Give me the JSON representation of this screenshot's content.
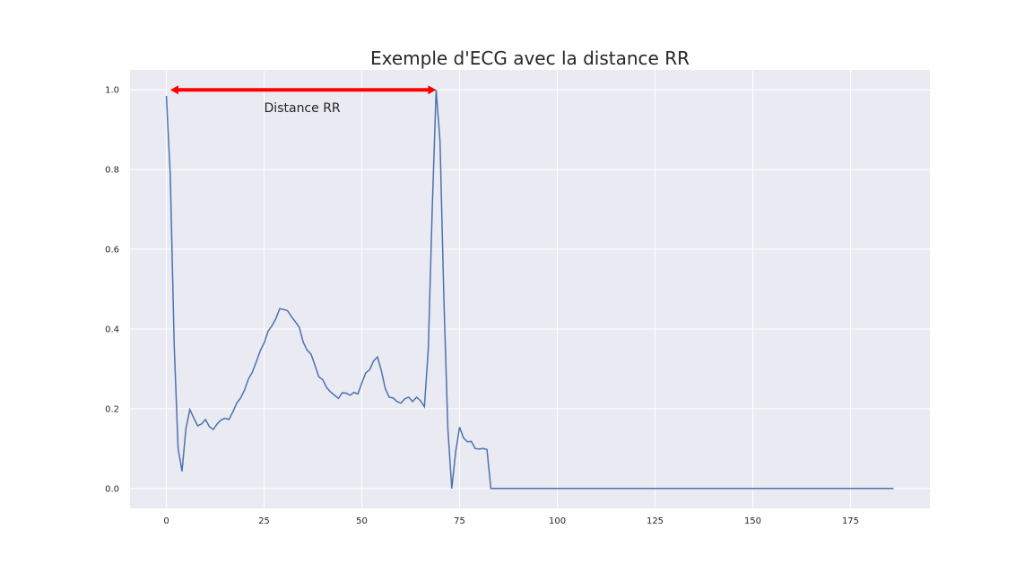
{
  "chart_data": {
    "type": "line",
    "title": "Exemple d'ECG avec la distance RR",
    "xlabel": "",
    "ylabel": "",
    "xlim": [
      -9.3,
      195.3
    ],
    "ylim": [
      -0.05,
      1.05
    ],
    "xticks": [
      0,
      25,
      50,
      75,
      100,
      125,
      150,
      175
    ],
    "yticks": [
      0.0,
      0.2,
      0.4,
      0.6,
      0.8,
      1.0
    ],
    "xtick_labels": [
      "0",
      "25",
      "50",
      "75",
      "100",
      "125",
      "150",
      "175"
    ],
    "ytick_labels": [
      "0.0",
      "0.2",
      "0.4",
      "0.6",
      "0.8",
      "1.0"
    ],
    "grid": true,
    "style": {
      "background": "#eaeaf2",
      "grid_color": "#ffffff",
      "line_color": "#4c72b0",
      "annotation_color": "#ff0000"
    },
    "series": [
      {
        "x": [
          0,
          1,
          2,
          3,
          4,
          5,
          6,
          7,
          8,
          9,
          10,
          11,
          12,
          13,
          14,
          15,
          16,
          17,
          18,
          19,
          20,
          21,
          22,
          23,
          24,
          25,
          26,
          27,
          28,
          29,
          30,
          31,
          32,
          33,
          34,
          35,
          36,
          37,
          38,
          39,
          40,
          41,
          42,
          43,
          44,
          45,
          46,
          47,
          48,
          49,
          50,
          51,
          52,
          53,
          54,
          55,
          56,
          57,
          58,
          59,
          60,
          61,
          62,
          63,
          64,
          65,
          66,
          67,
          68,
          69,
          70,
          71,
          72,
          73,
          74,
          75,
          76,
          77,
          78,
          79,
          80,
          81,
          82,
          83,
          186
        ],
        "y": [
          0.985,
          0.785,
          0.36,
          0.1,
          0.043,
          0.15,
          0.198,
          0.177,
          0.157,
          0.162,
          0.173,
          0.155,
          0.148,
          0.162,
          0.172,
          0.176,
          0.173,
          0.192,
          0.214,
          0.227,
          0.247,
          0.275,
          0.292,
          0.318,
          0.345,
          0.365,
          0.394,
          0.408,
          0.426,
          0.451,
          0.449,
          0.446,
          0.431,
          0.418,
          0.404,
          0.367,
          0.347,
          0.337,
          0.309,
          0.28,
          0.273,
          0.253,
          0.242,
          0.234,
          0.226,
          0.24,
          0.239,
          0.234,
          0.241,
          0.237,
          0.265,
          0.29,
          0.298,
          0.32,
          0.33,
          0.295,
          0.25,
          0.229,
          0.227,
          0.218,
          0.214,
          0.225,
          0.229,
          0.218,
          0.229,
          0.22,
          0.205,
          0.35,
          0.7,
          1.0,
          0.87,
          0.47,
          0.15,
          0.0,
          0.092,
          0.154,
          0.127,
          0.117,
          0.118,
          0.1,
          0.099,
          0.1,
          0.098,
          0.0,
          0.0
        ]
      }
    ],
    "annotations": [
      {
        "type": "double-arrow",
        "x_start": 1,
        "x_end": 69,
        "y": 1.0,
        "color": "#ff0000"
      },
      {
        "type": "text",
        "text": "Distance RR",
        "x": 25,
        "y": 0.955
      }
    ]
  }
}
